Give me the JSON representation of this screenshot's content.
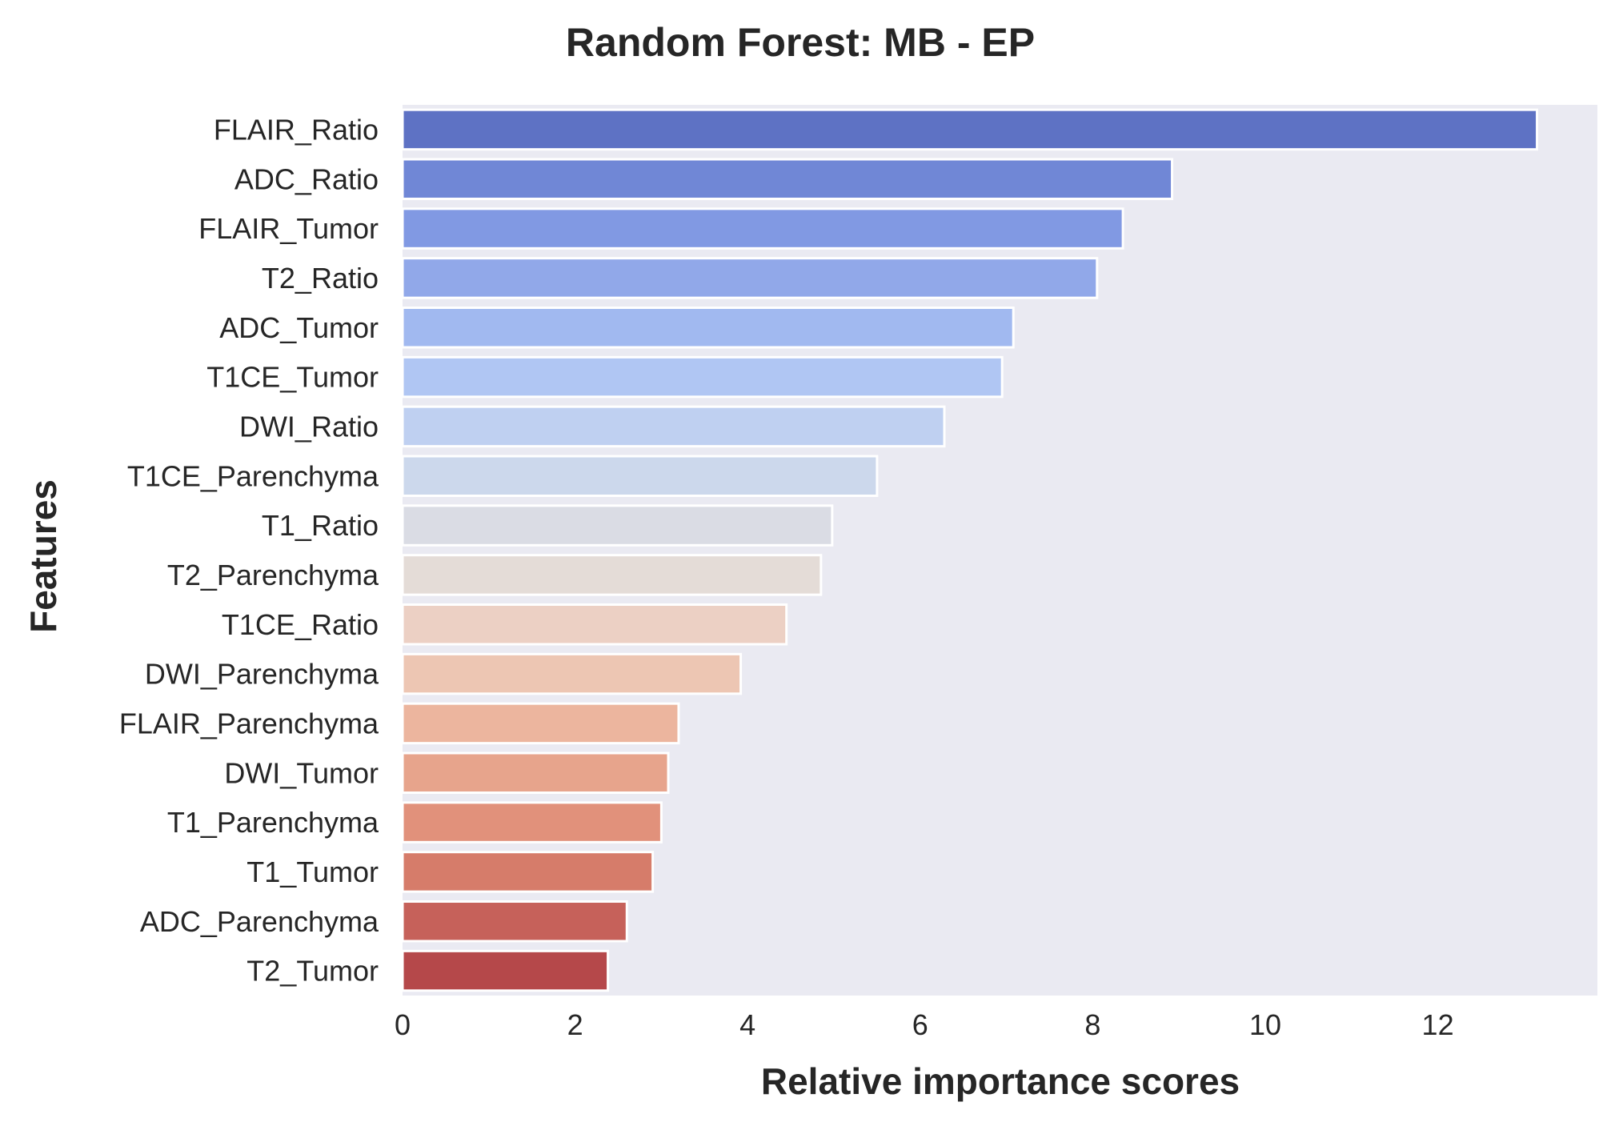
{
  "chart_data": {
    "type": "bar",
    "orientation": "horizontal",
    "title": "Random Forest: MB - EP",
    "xlabel": "Relative importance scores",
    "ylabel": "Features",
    "xlim": [
      0,
      13.85
    ],
    "xticks": [
      0,
      2,
      4,
      6,
      8,
      10,
      12
    ],
    "grid": false,
    "categories": [
      "FLAIR_Ratio",
      "ADC_Ratio",
      "FLAIR_Tumor",
      "T2_Ratio",
      "ADC_Tumor",
      "T1CE_Tumor",
      "DWI_Ratio",
      "T1CE_Parenchyma",
      "T1_Ratio",
      "T2_Parenchyma",
      "T1CE_Ratio",
      "DWI_Parenchyma",
      "FLAIR_Parenchyma",
      "DWI_Tumor",
      "T1_Parenchyma",
      "T1_Tumor",
      "ADC_Parenchyma",
      "T2_Tumor"
    ],
    "values": [
      13.15,
      8.92,
      8.35,
      8.05,
      7.08,
      6.95,
      6.28,
      5.5,
      4.98,
      4.85,
      4.45,
      3.92,
      3.2,
      3.08,
      3.0,
      2.9,
      2.6,
      2.38
    ],
    "colors": [
      "#5e72c4",
      "#7087d6",
      "#8199e3",
      "#91a8e9",
      "#a1b9f0",
      "#b0c6f3",
      "#bfd0f1",
      "#ccd8ec",
      "#dadce4",
      "#e4dcd7",
      "#ecd0c4",
      "#edc6b3",
      "#ecb59e",
      "#e7a48c",
      "#e1917b",
      "#d67c6a",
      "#c6615a",
      "#b5484a"
    ],
    "plot_background": "#eaeaf2"
  }
}
